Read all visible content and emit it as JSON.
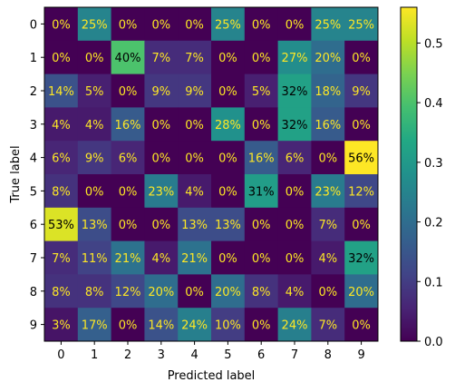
{
  "chart_data": {
    "type": "heatmap",
    "title": "",
    "xlabel": "Predicted label",
    "ylabel": "True label",
    "categories_x": [
      "0",
      "1",
      "2",
      "3",
      "4",
      "5",
      "6",
      "7",
      "8",
      "9"
    ],
    "categories_y": [
      "0",
      "1",
      "2",
      "3",
      "4",
      "5",
      "6",
      "7",
      "8",
      "9"
    ],
    "colormap": "viridis",
    "value_range": [
      0,
      0.56
    ],
    "colorbar_ticks": [
      0.0,
      0.1,
      0.2,
      0.3,
      0.4,
      0.5
    ],
    "colorbar_tick_labels": [
      "0.0",
      "0.1",
      "0.2",
      "0.3",
      "0.4",
      "0.5"
    ],
    "cell_labels": [
      [
        "0%",
        "25%",
        "0%",
        "0%",
        "0%",
        "25%",
        "0%",
        "0%",
        "25%",
        "25%"
      ],
      [
        "0%",
        "0%",
        "40%",
        "7%",
        "7%",
        "0%",
        "0%",
        "27%",
        "20%",
        "0%"
      ],
      [
        "14%",
        "5%",
        "0%",
        "9%",
        "9%",
        "0%",
        "5%",
        "32%",
        "18%",
        "9%"
      ],
      [
        "4%",
        "4%",
        "16%",
        "0%",
        "0%",
        "28%",
        "0%",
        "32%",
        "16%",
        "0%"
      ],
      [
        "6%",
        "9%",
        "6%",
        "0%",
        "0%",
        "0%",
        "16%",
        "6%",
        "0%",
        "56%"
      ],
      [
        "8%",
        "0%",
        "0%",
        "23%",
        "4%",
        "0%",
        "31%",
        "0%",
        "23%",
        "12%"
      ],
      [
        "53%",
        "13%",
        "0%",
        "0%",
        "13%",
        "13%",
        "0%",
        "0%",
        "7%",
        "0%"
      ],
      [
        "7%",
        "11%",
        "21%",
        "4%",
        "21%",
        "0%",
        "0%",
        "0%",
        "4%",
        "32%"
      ],
      [
        "8%",
        "8%",
        "12%",
        "20%",
        "0%",
        "20%",
        "8%",
        "4%",
        "0%",
        "20%"
      ],
      [
        "3%",
        "17%",
        "0%",
        "14%",
        "24%",
        "10%",
        "0%",
        "24%",
        "7%",
        "0%"
      ]
    ],
    "values": [
      [
        0.0,
        0.25,
        0.0,
        0.0,
        0.0,
        0.25,
        0.0,
        0.0,
        0.25,
        0.25
      ],
      [
        0.0,
        0.0,
        0.4,
        0.07,
        0.07,
        0.0,
        0.0,
        0.27,
        0.2,
        0.0
      ],
      [
        0.14,
        0.05,
        0.0,
        0.09,
        0.09,
        0.0,
        0.05,
        0.32,
        0.18,
        0.09
      ],
      [
        0.04,
        0.04,
        0.16,
        0.0,
        0.0,
        0.28,
        0.0,
        0.32,
        0.16,
        0.0
      ],
      [
        0.06,
        0.09,
        0.06,
        0.0,
        0.0,
        0.0,
        0.16,
        0.06,
        0.0,
        0.56
      ],
      [
        0.08,
        0.0,
        0.0,
        0.23,
        0.04,
        0.0,
        0.31,
        0.0,
        0.23,
        0.12
      ],
      [
        0.53,
        0.13,
        0.0,
        0.0,
        0.13,
        0.13,
        0.0,
        0.0,
        0.07,
        0.0
      ],
      [
        0.07,
        0.11,
        0.21,
        0.04,
        0.21,
        0.0,
        0.0,
        0.0,
        0.04,
        0.32
      ],
      [
        0.08,
        0.08,
        0.12,
        0.2,
        0.0,
        0.2,
        0.08,
        0.04,
        0.0,
        0.2
      ],
      [
        0.03,
        0.17,
        0.0,
        0.14,
        0.24,
        0.1,
        0.0,
        0.24,
        0.07,
        0.0
      ]
    ],
    "text_color_light": "#fde725",
    "text_color_dark": "#000000"
  }
}
